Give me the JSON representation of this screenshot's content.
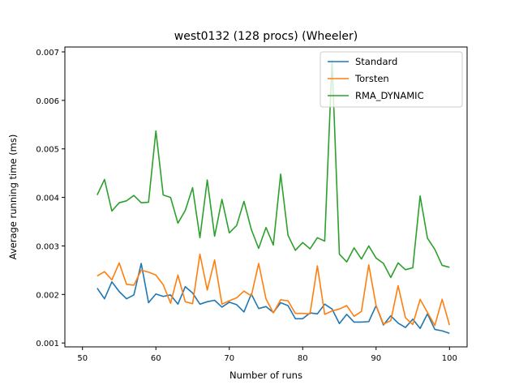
{
  "chart_data": {
    "type": "line",
    "title": "west0132 (128 procs) (Wheeler)",
    "xlabel": "Number of runs",
    "ylabel": "Average running time (ms)",
    "xlim": [
      47.6,
      102.4
    ],
    "ylim": [
      0.00092,
      0.0071
    ],
    "xticks": [
      50,
      60,
      70,
      80,
      90,
      100
    ],
    "yticks": [
      0.001,
      0.002,
      0.003,
      0.004,
      0.005,
      0.006,
      0.007
    ],
    "xtick_labels": [
      "50",
      "60",
      "70",
      "80",
      "90",
      "100"
    ],
    "ytick_labels": [
      "0.001",
      "0.002",
      "0.003",
      "0.004",
      "0.005",
      "0.006",
      "0.007"
    ],
    "legend_position": "top-right",
    "grid": false,
    "x": [
      52,
      53,
      54,
      55,
      56,
      57,
      58,
      59,
      60,
      61,
      62,
      63,
      64,
      65,
      66,
      67,
      68,
      69,
      70,
      71,
      72,
      73,
      74,
      75,
      76,
      77,
      78,
      79,
      80,
      81,
      82,
      83,
      84,
      85,
      86,
      87,
      88,
      89,
      90,
      91,
      92,
      93,
      94,
      95,
      96,
      97,
      98,
      99,
      100
    ],
    "series": [
      {
        "name": "Standard",
        "color": "#1f77b4",
        "values": [
          0.00213,
          0.00191,
          0.00226,
          0.00206,
          0.00191,
          0.00199,
          0.00264,
          0.00183,
          0.00201,
          0.00196,
          0.00199,
          0.0018,
          0.00216,
          0.00203,
          0.0018,
          0.00185,
          0.00188,
          0.00174,
          0.00184,
          0.00179,
          0.00164,
          0.00201,
          0.00171,
          0.00175,
          0.00163,
          0.00183,
          0.00177,
          0.0015,
          0.0015,
          0.00162,
          0.0016,
          0.0018,
          0.0017,
          0.0014,
          0.00159,
          0.00143,
          0.00143,
          0.00144,
          0.00177,
          0.00137,
          0.00156,
          0.00141,
          0.00132,
          0.00149,
          0.0013,
          0.0016,
          0.00128,
          0.00125,
          0.0012
        ]
      },
      {
        "name": "Torsten",
        "color": "#ff7f0e",
        "values": [
          0.00238,
          0.00247,
          0.0023,
          0.00265,
          0.00221,
          0.00219,
          0.0025,
          0.00246,
          0.0024,
          0.0022,
          0.00182,
          0.0024,
          0.00185,
          0.00181,
          0.00283,
          0.00209,
          0.00271,
          0.0018,
          0.00187,
          0.00193,
          0.00207,
          0.00197,
          0.00264,
          0.00191,
          0.00162,
          0.00189,
          0.00187,
          0.00161,
          0.00161,
          0.0016,
          0.00259,
          0.00159,
          0.00166,
          0.0017,
          0.00177,
          0.00155,
          0.00165,
          0.00261,
          0.00177,
          0.00139,
          0.00146,
          0.00218,
          0.00152,
          0.00138,
          0.0019,
          0.00163,
          0.00136,
          0.0019,
          0.00137
        ]
      },
      {
        "name": "RMA_DYNAMIC",
        "color": "#2ca02c",
        "values": [
          0.00405,
          0.00437,
          0.00372,
          0.00389,
          0.00393,
          0.00404,
          0.00389,
          0.0039,
          0.00537,
          0.00405,
          0.004,
          0.00347,
          0.00373,
          0.0042,
          0.00317,
          0.00436,
          0.0032,
          0.00396,
          0.00327,
          0.00342,
          0.00392,
          0.00334,
          0.00295,
          0.00338,
          0.00302,
          0.00448,
          0.00322,
          0.00291,
          0.00307,
          0.00294,
          0.00317,
          0.0031,
          0.00682,
          0.00283,
          0.00267,
          0.00296,
          0.00273,
          0.003,
          0.00275,
          0.00264,
          0.00235,
          0.00265,
          0.00251,
          0.00255,
          0.00403,
          0.00316,
          0.00293,
          0.0026,
          0.00256
        ]
      }
    ]
  }
}
